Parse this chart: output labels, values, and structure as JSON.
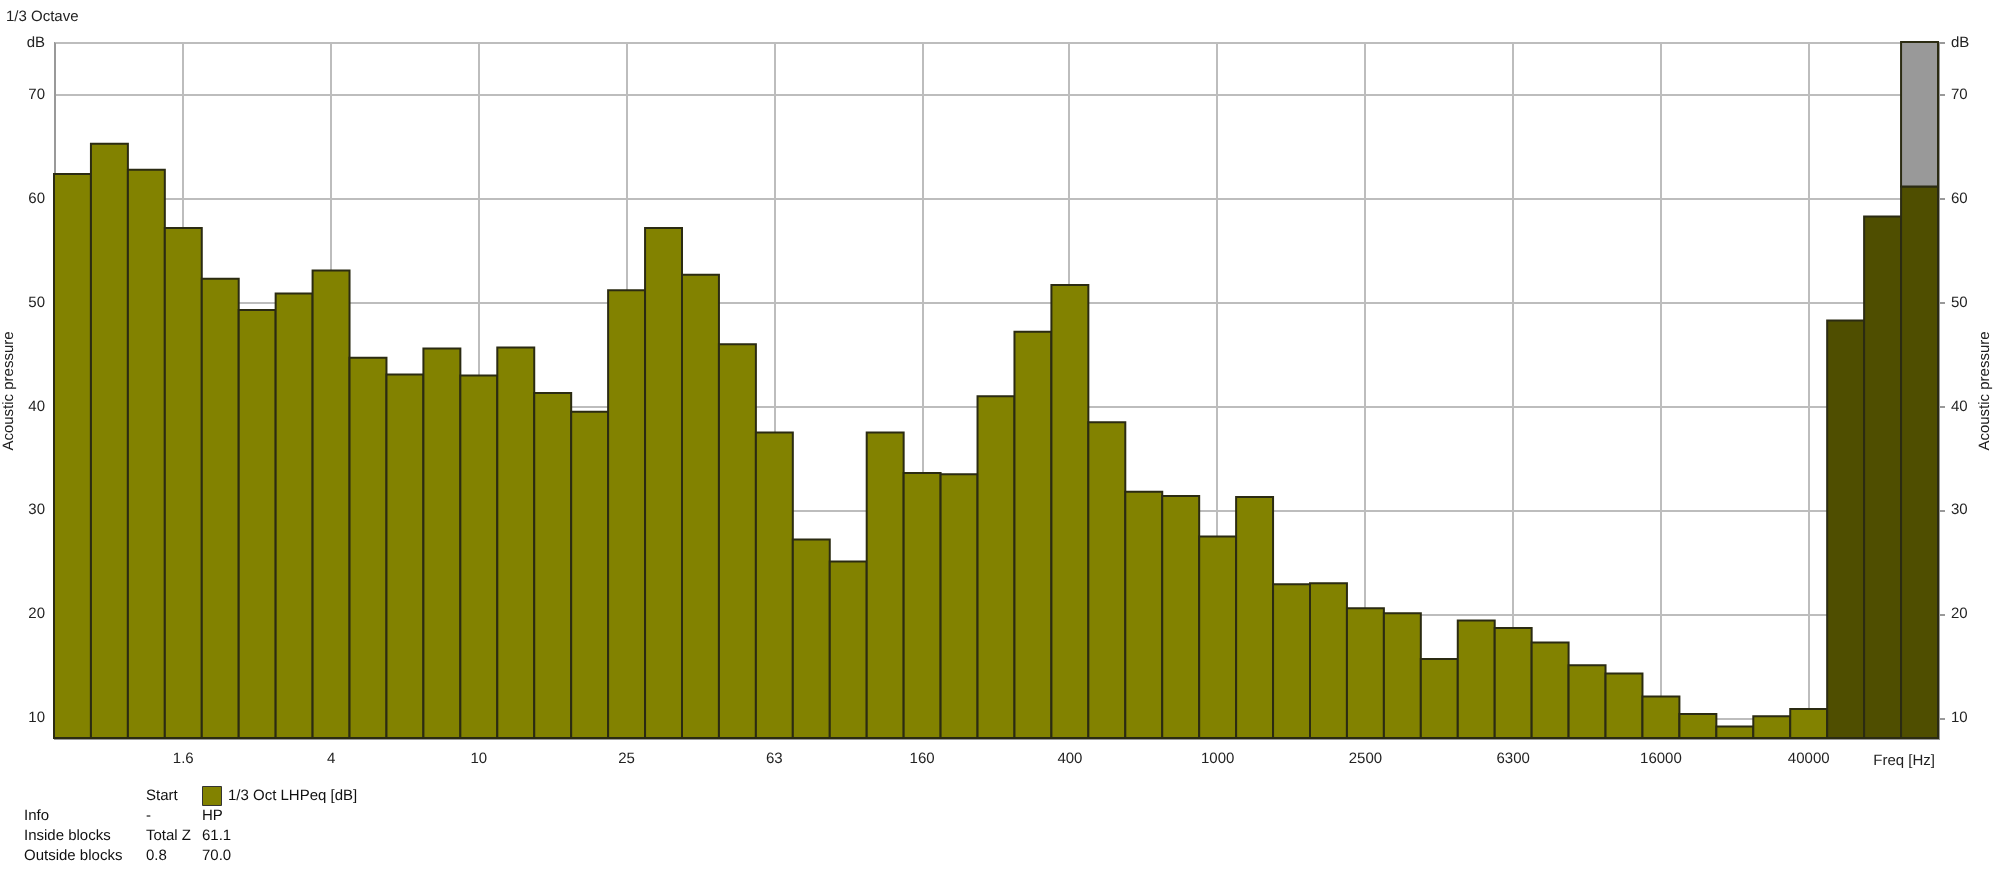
{
  "chart_data": {
    "type": "bar",
    "title": "1/3 Octave",
    "xlabel": "Freq [Hz]",
    "ylabel": "Acoustic pressure",
    "y2label": "Acoustic pressure",
    "categories": [
      null,
      null,
      null,
      "1.6",
      null,
      null,
      null,
      "4",
      null,
      null,
      null,
      "10",
      null,
      null,
      null,
      "25",
      null,
      null,
      null,
      "63",
      null,
      null,
      null,
      "160",
      null,
      null,
      null,
      "400",
      null,
      null,
      null,
      "1000",
      null,
      null,
      null,
      "2500",
      null,
      null,
      null,
      "6300",
      null,
      null,
      null,
      "16000",
      null,
      null,
      null,
      "40000",
      null,
      null,
      null
    ],
    "series": [
      {
        "name": "1/3 Oct LHPeq [dB]",
        "color": "#828200",
        "values": [
          62.3,
          65.2,
          62.7,
          57.1,
          52.2,
          49.2,
          50.8,
          53.0,
          44.6,
          43.0,
          45.5,
          42.9,
          45.6,
          41.2,
          39.4,
          51.1,
          57.1,
          52.6,
          45.9,
          37.4,
          27.1,
          25.0,
          37.4,
          33.5,
          33.4,
          40.9,
          47.1,
          51.6,
          38.4,
          31.7,
          31.3,
          27.4,
          31.2,
          22.8,
          22.9,
          20.5,
          20.0,
          15.6,
          19.3,
          18.6,
          17.2,
          15.0,
          14.2,
          12.0,
          10.3,
          9.1,
          10.1,
          10.8,
          null,
          null,
          null
        ]
      },
      {
        "color": "#4f4e00",
        "values": [
          null,
          null,
          null,
          null,
          null,
          null,
          null,
          null,
          null,
          null,
          null,
          null,
          null,
          null,
          null,
          null,
          null,
          null,
          null,
          null,
          null,
          null,
          null,
          null,
          null,
          null,
          null,
          null,
          null,
          null,
          null,
          null,
          null,
          null,
          null,
          null,
          null,
          null,
          null,
          null,
          null,
          null,
          null,
          null,
          null,
          null,
          null,
          null,
          48.2,
          58.2,
          61.1
        ]
      },
      {
        "color": "#999999",
        "values": [
          null,
          null,
          null,
          null,
          null,
          null,
          null,
          null,
          null,
          null,
          null,
          null,
          null,
          null,
          null,
          null,
          null,
          null,
          null,
          null,
          null,
          null,
          null,
          null,
          null,
          null,
          null,
          null,
          null,
          null,
          null,
          null,
          null,
          null,
          null,
          null,
          null,
          null,
          null,
          null,
          null,
          null,
          null,
          null,
          null,
          null,
          null,
          null,
          null,
          null,
          13.9
        ]
      }
    ],
    "stacked": true,
    "ylim": [
      8,
      75
    ],
    "yticks": [
      10,
      20,
      30,
      40,
      50,
      60,
      70,
      {
        "value": 75,
        "label": "dB"
      }
    ],
    "y2lim": [
      8,
      75
    ],
    "y2ticks": [
      10,
      20,
      30,
      40,
      50,
      60,
      70,
      {
        "value": 75,
        "label": "dB"
      }
    ],
    "grid": true,
    "legend": "bottom left",
    "annotations": [
      "Start",
      "Info",
      "-",
      "HP",
      "Inside blocks",
      "Total Z",
      "61.1",
      "Outside blocks",
      "0.8",
      "70.0"
    ]
  }
}
